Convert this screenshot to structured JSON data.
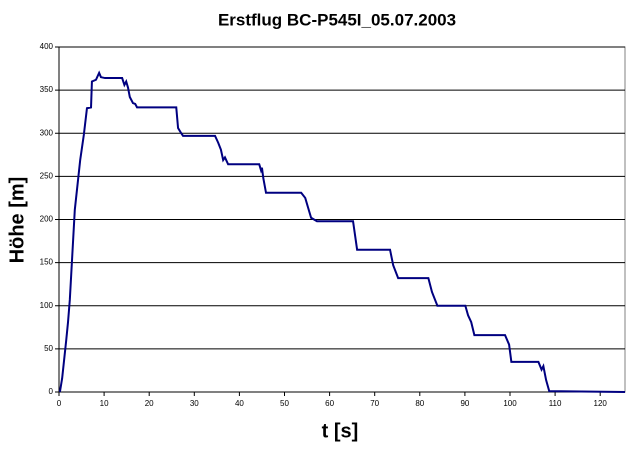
{
  "chart_data": {
    "type": "line",
    "title": "Erstflug BC-P545I_05.07.2003",
    "x_label": "t [s]",
    "y_label": "Höhe [m]",
    "x": [
      0.2,
      0.7,
      1.6,
      2,
      2.4,
      3.5,
      4.7,
      5.5,
      6.2,
      7.1,
      7.3,
      8.2,
      8.9,
      9.3,
      10.2,
      14,
      14.5,
      14.9,
      15.3,
      15.7,
      16.4,
      16.9,
      17.3,
      26,
      26.4,
      27.1,
      27.5,
      34.6,
      35.3,
      35.9,
      36.4,
      36.8,
      37.5,
      44.4,
      44.8,
      45,
      45.3,
      45.9,
      53.7,
      54.6,
      55.5,
      55.9,
      57.2,
      65.2,
      66.1,
      73.4,
      74.1,
      75.2,
      81.9,
      82.7,
      83.9,
      90.1,
      90.7,
      91.4,
      92.1,
      98.9,
      99.8,
      100.3,
      106.3,
      107,
      107.4,
      108,
      108.7,
      125.5
    ],
    "series": [
      {
        "name": "Höhe",
        "color": "#000080",
        "values": [
          0,
          16,
          60,
          81,
          107,
          211,
          269,
          298,
          329,
          330,
          360,
          362,
          370,
          365,
          364,
          364,
          356,
          360,
          353,
          342,
          335,
          334,
          330,
          330,
          306,
          300,
          297,
          297,
          289,
          281,
          269,
          272,
          264,
          264,
          257,
          260,
          248,
          231,
          231,
          225,
          209,
          202,
          198,
          198,
          165,
          165,
          147,
          132,
          132,
          116,
          100,
          100,
          89,
          81,
          66,
          66,
          55,
          35,
          35,
          26,
          30,
          14,
          1,
          0
        ]
      }
    ],
    "xlim": [
      0,
      125.5
    ],
    "xticks": [
      0,
      10,
      20,
      30,
      40,
      50,
      60,
      70,
      80,
      90,
      100,
      110,
      120
    ],
    "ylim": [
      0,
      400
    ],
    "yticks": [
      0,
      50,
      100,
      150,
      200,
      250,
      300,
      350,
      400
    ],
    "grid": true
  }
}
